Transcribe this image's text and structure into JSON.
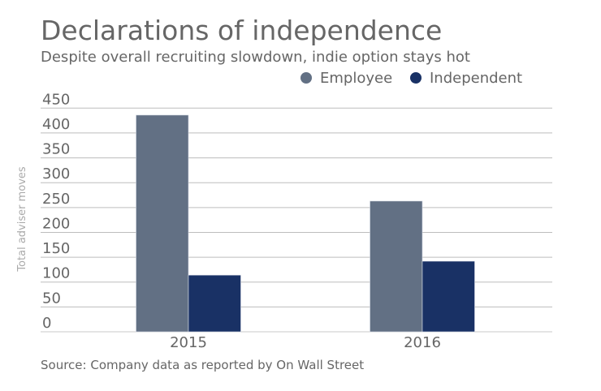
{
  "chart_data": {
    "type": "bar",
    "title": "Declarations of independence",
    "subtitle": "Despite overall recruiting slowdown, indie option stays hot",
    "categories": [
      "2015",
      "2016"
    ],
    "series": [
      {
        "name": "Employee",
        "values": [
          436,
          263
        ],
        "color": "#627084"
      },
      {
        "name": "Independent",
        "values": [
          114,
          142
        ],
        "color": "#193165"
      }
    ],
    "xlabel": "",
    "ylabel": "Total adviser moves",
    "ylim": [
      0,
      450
    ],
    "yticks": [
      0,
      50,
      100,
      150,
      200,
      250,
      300,
      350,
      400,
      450
    ],
    "grid": true,
    "legend_position": "top-right",
    "source": "Source: Company data as reported by On Wall Street"
  }
}
